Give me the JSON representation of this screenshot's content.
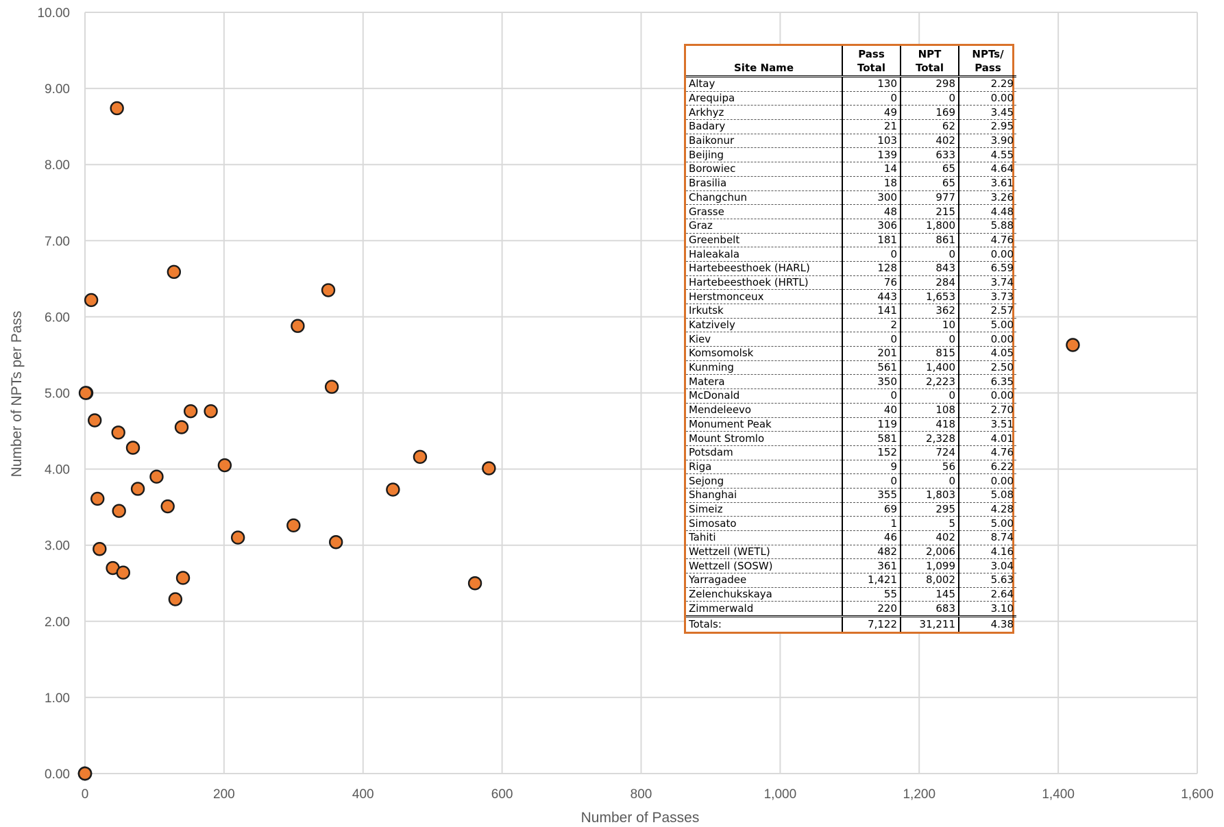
{
  "chart_data": {
    "type": "scatter",
    "xlabel": "Number  of Passes",
    "ylabel": "Number of NPTs per Pass",
    "xlim": [
      0,
      1600
    ],
    "ylim": [
      0,
      10
    ],
    "x_ticks": [
      "0",
      "200",
      "400",
      "600",
      "800",
      "1,000",
      "1,200",
      "1,400",
      "1,600"
    ],
    "y_ticks": [
      "0.00",
      "1.00",
      "2.00",
      "3.00",
      "4.00",
      "5.00",
      "6.00",
      "7.00",
      "8.00",
      "9.00",
      "10.00"
    ],
    "grid": true,
    "marker_color": "#ed7d31",
    "marker_edge_color": "#1a1a1a",
    "points": [
      {
        "x": 130,
        "y": 2.29
      },
      {
        "x": 0,
        "y": 0.0
      },
      {
        "x": 49,
        "y": 3.45
      },
      {
        "x": 21,
        "y": 2.95
      },
      {
        "x": 103,
        "y": 3.9
      },
      {
        "x": 139,
        "y": 4.55
      },
      {
        "x": 14,
        "y": 4.64
      },
      {
        "x": 18,
        "y": 3.61
      },
      {
        "x": 300,
        "y": 3.26
      },
      {
        "x": 48,
        "y": 4.48
      },
      {
        "x": 306,
        "y": 5.88
      },
      {
        "x": 181,
        "y": 4.76
      },
      {
        "x": 0,
        "y": 0.0
      },
      {
        "x": 128,
        "y": 6.59
      },
      {
        "x": 76,
        "y": 3.74
      },
      {
        "x": 443,
        "y": 3.73
      },
      {
        "x": 141,
        "y": 2.57
      },
      {
        "x": 2,
        "y": 5.0
      },
      {
        "x": 0,
        "y": 0.0
      },
      {
        "x": 201,
        "y": 4.05
      },
      {
        "x": 561,
        "y": 2.5
      },
      {
        "x": 350,
        "y": 6.35
      },
      {
        "x": 0,
        "y": 0.0
      },
      {
        "x": 40,
        "y": 2.7
      },
      {
        "x": 119,
        "y": 3.51
      },
      {
        "x": 581,
        "y": 4.01
      },
      {
        "x": 152,
        "y": 4.76
      },
      {
        "x": 9,
        "y": 6.22
      },
      {
        "x": 0,
        "y": 0.0
      },
      {
        "x": 355,
        "y": 5.08
      },
      {
        "x": 69,
        "y": 4.28
      },
      {
        "x": 1,
        "y": 5.0
      },
      {
        "x": 46,
        "y": 8.74
      },
      {
        "x": 482,
        "y": 4.16
      },
      {
        "x": 361,
        "y": 3.04
      },
      {
        "x": 1421,
        "y": 5.63
      },
      {
        "x": 55,
        "y": 2.64
      },
      {
        "x": 220,
        "y": 3.1
      }
    ]
  },
  "table": {
    "headers": [
      "Site Name",
      "Pass Total",
      "NPT Total",
      "NPTs/ Pass"
    ],
    "rows": [
      [
        "Altay",
        "130",
        "298",
        "2.29"
      ],
      [
        "Arequipa",
        "0",
        "0",
        "0.00"
      ],
      [
        "Arkhyz",
        "49",
        "169",
        "3.45"
      ],
      [
        "Badary",
        "21",
        "62",
        "2.95"
      ],
      [
        "Baikonur",
        "103",
        "402",
        "3.90"
      ],
      [
        "Beijing",
        "139",
        "633",
        "4.55"
      ],
      [
        "Borowiec",
        "14",
        "65",
        "4.64"
      ],
      [
        "Brasilia",
        "18",
        "65",
        "3.61"
      ],
      [
        "Changchun",
        "300",
        "977",
        "3.26"
      ],
      [
        "Grasse",
        "48",
        "215",
        "4.48"
      ],
      [
        "Graz",
        "306",
        "1,800",
        "5.88"
      ],
      [
        "Greenbelt",
        "181",
        "861",
        "4.76"
      ],
      [
        "Haleakala",
        "0",
        "0",
        "0.00"
      ],
      [
        "Hartebeesthoek (HARL)",
        "128",
        "843",
        "6.59"
      ],
      [
        "Hartebeesthoek (HRTL)",
        "76",
        "284",
        "3.74"
      ],
      [
        "Herstmonceux",
        "443",
        "1,653",
        "3.73"
      ],
      [
        "Irkutsk",
        "141",
        "362",
        "2.57"
      ],
      [
        "Katzively",
        "2",
        "10",
        "5.00"
      ],
      [
        "Kiev",
        "0",
        "0",
        "0.00"
      ],
      [
        "Komsomolsk",
        "201",
        "815",
        "4.05"
      ],
      [
        "Kunming",
        "561",
        "1,400",
        "2.50"
      ],
      [
        "Matera",
        "350",
        "2,223",
        "6.35"
      ],
      [
        "McDonald",
        "0",
        "0",
        "0.00"
      ],
      [
        "Mendeleevo",
        "40",
        "108",
        "2.70"
      ],
      [
        "Monument Peak",
        "119",
        "418",
        "3.51"
      ],
      [
        "Mount Stromlo",
        "581",
        "2,328",
        "4.01"
      ],
      [
        "Potsdam",
        "152",
        "724",
        "4.76"
      ],
      [
        "Riga",
        "9",
        "56",
        "6.22"
      ],
      [
        "Sejong",
        "0",
        "0",
        "0.00"
      ],
      [
        "Shanghai",
        "355",
        "1,803",
        "5.08"
      ],
      [
        "Simeiz",
        "69",
        "295",
        "4.28"
      ],
      [
        "Simosato",
        "1",
        "5",
        "5.00"
      ],
      [
        "Tahiti",
        "46",
        "402",
        "8.74"
      ],
      [
        "Wettzell (WETL)",
        "482",
        "2,006",
        "4.16"
      ],
      [
        "Wettzell (SOSW)",
        "361",
        "1,099",
        "3.04"
      ],
      [
        "Yarragadee",
        "1,421",
        "8,002",
        "5.63"
      ],
      [
        "Zelenchukskaya",
        "55",
        "145",
        "2.64"
      ],
      [
        "Zimmerwald",
        "220",
        "683",
        "3.10"
      ]
    ],
    "totals": [
      "Totals:",
      "7,122",
      "31,211",
      "4.38"
    ]
  }
}
